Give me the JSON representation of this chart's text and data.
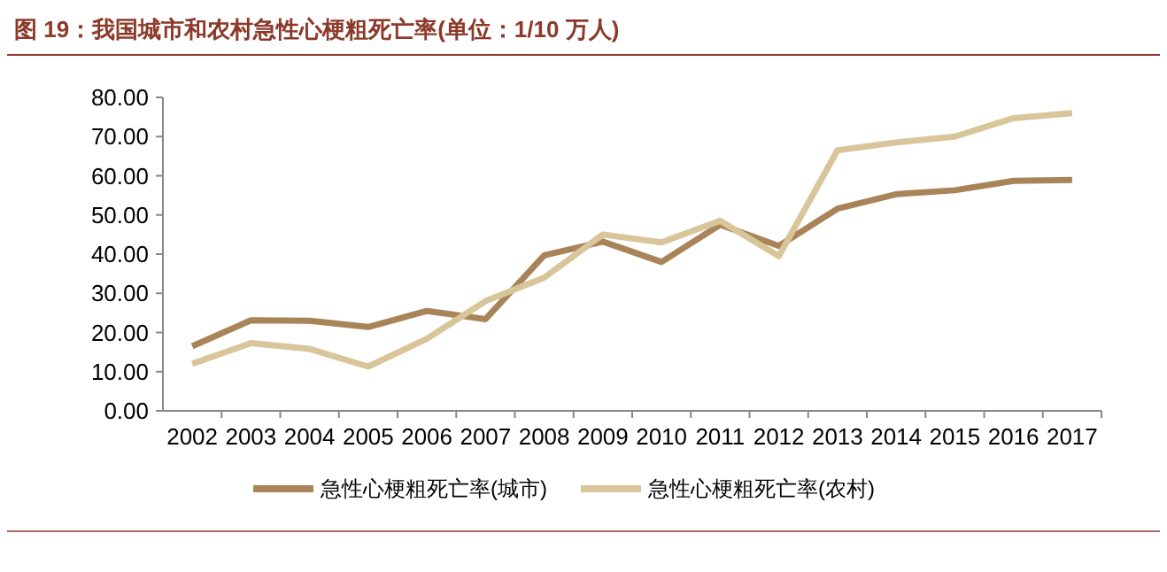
{
  "chart_data": {
    "type": "line",
    "title": "图 19：我国城市和农村急性心梗粗死亡率(单位：1/10 万人)",
    "categories": [
      "2002",
      "2003",
      "2004",
      "2005",
      "2006",
      "2007",
      "2008",
      "2009",
      "2010",
      "2011",
      "2012",
      "2013",
      "2014",
      "2015",
      "2016",
      "2017"
    ],
    "series": [
      {
        "name": "急性心梗粗死亡率(城市)",
        "color": "#a98459",
        "values": [
          16.5,
          23.1,
          23.0,
          21.4,
          25.5,
          23.4,
          39.7,
          43.2,
          38.0,
          47.5,
          42.1,
          51.6,
          55.3,
          56.3,
          58.7,
          58.9
        ]
      },
      {
        "name": "急性心梗粗死亡率(农村)",
        "color": "#d8c59a",
        "values": [
          12.0,
          17.3,
          15.8,
          11.3,
          18.4,
          28.0,
          34.0,
          45.0,
          43.0,
          48.5,
          39.5,
          66.5,
          68.5,
          70.0,
          74.7,
          76.0
        ]
      }
    ],
    "ylim": [
      0,
      80
    ],
    "yticks": [
      {
        "value": 0,
        "label": "0.00"
      },
      {
        "value": 10,
        "label": "10.00"
      },
      {
        "value": 20,
        "label": "20.00"
      },
      {
        "value": 30,
        "label": "30.00"
      },
      {
        "value": 40,
        "label": "40.00"
      },
      {
        "value": 50,
        "label": "50.00"
      },
      {
        "value": 60,
        "label": "60.00"
      },
      {
        "value": 70,
        "label": "70.00"
      },
      {
        "value": 80,
        "label": "80.00"
      }
    ],
    "legend": "bottom",
    "grid": false,
    "marker": "none",
    "line_style": "solid"
  }
}
